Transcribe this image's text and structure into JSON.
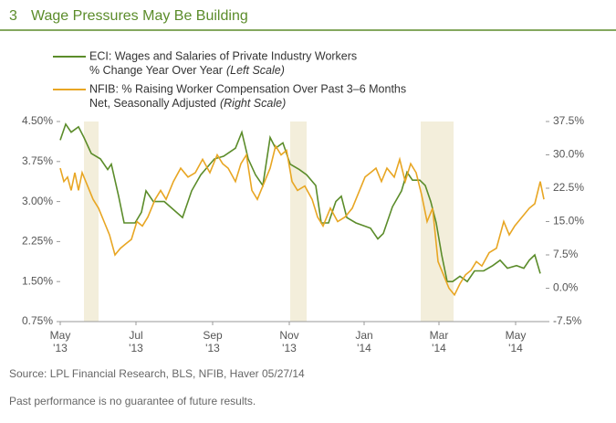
{
  "chart_data": {
    "type": "line",
    "number": "3",
    "title": "Wage Pressures May Be Building",
    "xlim": [
      0,
      532
    ],
    "xticks": [
      {
        "value": 0,
        "label": "May '13"
      },
      {
        "value": 83,
        "label": "Jul '13"
      },
      {
        "value": 167,
        "label": "Sep '13"
      },
      {
        "value": 251,
        "label": "Nov '13"
      },
      {
        "value": 333,
        "label": "Jan '14"
      },
      {
        "value": 415,
        "label": "Mar '14"
      },
      {
        "value": 499,
        "label": "May '14"
      }
    ],
    "ylim": [
      0.75,
      4.5
    ],
    "yticks": [
      {
        "value": 0.75,
        "label": "0.75%"
      },
      {
        "value": 1.5,
        "label": "1.50%"
      },
      {
        "value": 2.25,
        "label": "2.25%"
      },
      {
        "value": 3,
        "label": "3.00%"
      },
      {
        "value": 3.75,
        "label": "3.75%"
      },
      {
        "value": 4.5,
        "label": "4.50%"
      }
    ],
    "y2lim": [
      -7.5,
      37.5
    ],
    "y2ticks": [
      {
        "value": -7.5,
        "label": "-7.5%"
      },
      {
        "value": 0,
        "label": "0.0%"
      },
      {
        "value": 7.5,
        "label": "7.5%"
      },
      {
        "value": 15,
        "label": "15.0%"
      },
      {
        "value": 22.5,
        "label": "22.5%"
      },
      {
        "value": 30,
        "label": "30.0%"
      },
      {
        "value": 37.5,
        "label": "37.5%"
      }
    ],
    "shaded_regions": [
      [
        26,
        42
      ],
      [
        252,
        270
      ],
      [
        395,
        431
      ]
    ],
    "shade_color": "#f3eedb",
    "series": [
      {
        "name": "ECI: Wages and Salaries of Private Industry Workers",
        "note": "% Change Year Over Year",
        "scale": "(Left Scale)",
        "color": "#5b8c2a",
        "axis": "y",
        "x": [
          0,
          6,
          12,
          20,
          26,
          34,
          44,
          52,
          56,
          64,
          70,
          82,
          89,
          94,
          102,
          114,
          124,
          134,
          144,
          154,
          169,
          179,
          192,
          199,
          206,
          214,
          222,
          230,
          236,
          244,
          252,
          262,
          270,
          280,
          286,
          294,
          302,
          308,
          314,
          324,
          332,
          340,
          348,
          354,
          364,
          374,
          380,
          386,
          394,
          400,
          406,
          412,
          418,
          424,
          430,
          438,
          446,
          454,
          464,
          474,
          482,
          490,
          500,
          508,
          514,
          520,
          526
        ],
        "values": [
          4.15,
          4.45,
          4.3,
          4.4,
          4.2,
          3.9,
          3.8,
          3.6,
          3.7,
          3.1,
          2.6,
          2.6,
          2.8,
          3.2,
          3.0,
          3.0,
          2.85,
          2.7,
          3.2,
          3.5,
          3.8,
          3.85,
          4.0,
          4.3,
          3.8,
          3.5,
          3.3,
          4.2,
          4.0,
          4.1,
          3.7,
          3.6,
          3.5,
          3.3,
          2.6,
          2.6,
          3.0,
          3.1,
          2.7,
          2.6,
          2.55,
          2.5,
          2.3,
          2.4,
          2.9,
          3.2,
          3.55,
          3.4,
          3.4,
          3.3,
          3.0,
          2.6,
          2.0,
          1.5,
          1.5,
          1.6,
          1.5,
          1.7,
          1.7,
          1.8,
          1.9,
          1.75,
          1.8,
          1.75,
          1.9,
          2.0,
          1.65
        ]
      },
      {
        "name": "NFIB: % Raising Worker Compensation Over Past 3–6 Months",
        "note": "Net, Seasonally Adjusted",
        "scale": "(Right Scale)",
        "color": "#e8a623",
        "axis": "y2",
        "x": [
          0,
          4,
          8,
          12,
          16,
          20,
          24,
          30,
          36,
          42,
          48,
          54,
          60,
          66,
          72,
          78,
          84,
          90,
          96,
          104,
          110,
          116,
          124,
          132,
          140,
          148,
          156,
          164,
          172,
          178,
          184,
          192,
          198,
          204,
          210,
          216,
          224,
          230,
          236,
          242,
          248,
          254,
          260,
          268,
          276,
          282,
          288,
          296,
          304,
          312,
          320,
          328,
          334,
          340,
          346,
          352,
          358,
          366,
          372,
          378,
          384,
          390,
          396,
          402,
          408,
          414,
          420,
          426,
          432,
          438,
          444,
          450,
          456,
          462,
          470,
          478,
          486,
          492,
          498,
          506,
          514,
          520,
          526,
          530
        ],
        "values": [
          27,
          24,
          25,
          22,
          26,
          22,
          26,
          23,
          20,
          18,
          15,
          12,
          7.5,
          9,
          10,
          11,
          15,
          14,
          16,
          20,
          22,
          20,
          24,
          27,
          25,
          26,
          29,
          26,
          30,
          28,
          27,
          24,
          28,
          30,
          22,
          20,
          24,
          27,
          32,
          30,
          31,
          24,
          22,
          23,
          20,
          16,
          14,
          18,
          15,
          16,
          18,
          22,
          25,
          26,
          27,
          24,
          27,
          25,
          29,
          24,
          28,
          26,
          21,
          15,
          18,
          6,
          3,
          0,
          -1.5,
          1,
          3,
          4,
          6,
          5,
          8,
          9,
          15,
          12,
          14,
          16,
          18,
          19,
          24,
          20
        ]
      }
    ],
    "source": "Source: LPL Financial Research, BLS, NFIB, Haver   05/27/14",
    "disclaimer": "Past performance is no guarantee of future results."
  }
}
